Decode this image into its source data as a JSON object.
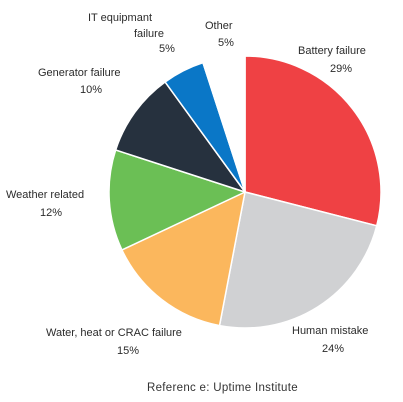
{
  "chart_data": {
    "type": "pie",
    "slices": [
      {
        "label": "Battery  failure",
        "value": 29,
        "value_label": "29%",
        "color": "#ef4144"
      },
      {
        "label": "Human mistake",
        "value": 24,
        "value_label": "24%",
        "color": "#d0d1d3"
      },
      {
        "label": "Water, heat  or CRAC  failure",
        "value": 15,
        "value_label": "15%",
        "color": "#fbb75d"
      },
      {
        "label": "Weather related",
        "value": 12,
        "value_label": "12%",
        "color": "#6bbf55"
      },
      {
        "label": "Generator failure",
        "value": 10,
        "value_label": "10%",
        "color": "#26313e"
      },
      {
        "label": "IT equipmant failure",
        "label_lines": [
          "IT equipmant",
          "failure"
        ],
        "value": 5,
        "value_label": "5%",
        "color": "#0a77c7"
      },
      {
        "label": "Other",
        "value": 5,
        "value_label": "5%",
        "color": "#ffffff"
      }
    ]
  },
  "footer": {
    "reference": "Referenc e: Uptime  Institute"
  }
}
